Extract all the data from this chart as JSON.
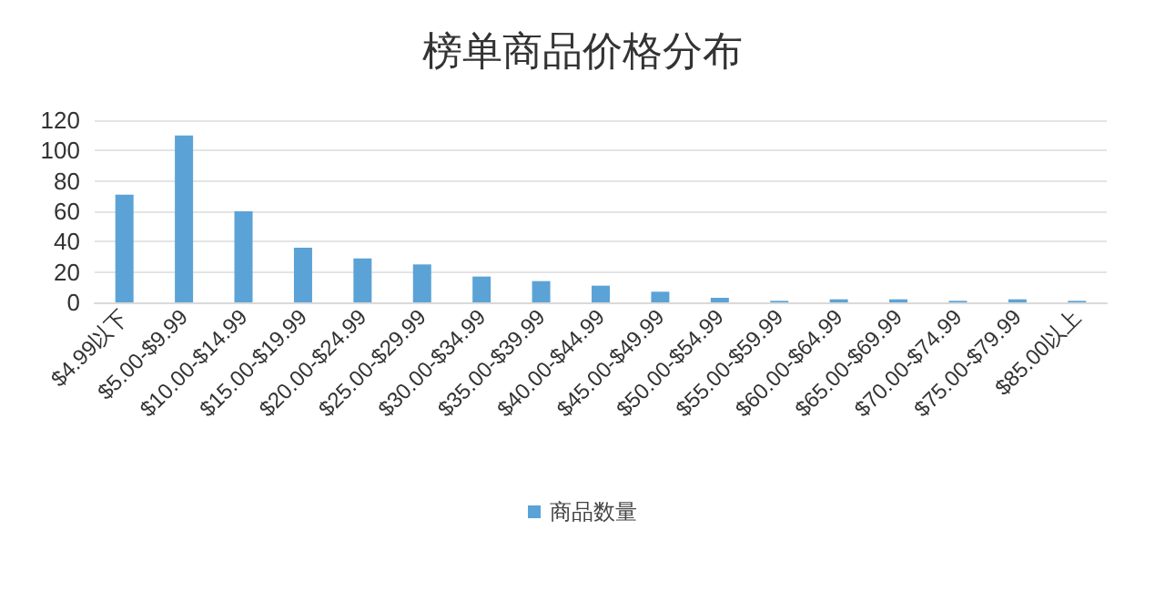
{
  "chart_data": {
    "type": "bar",
    "title": "榜单商品价格分布",
    "categories": [
      "$4.99以下",
      "$5.00-$9.99",
      "$10.00-$14.99",
      "$15.00-$19.99",
      "$20.00-$24.99",
      "$25.00-$29.99",
      "$30.00-$34.99",
      "$35.00-$39.99",
      "$40.00-$44.99",
      "$45.00-$49.99",
      "$50.00-$54.99",
      "$55.00-$59.99",
      "$60.00-$64.99",
      "$65.00-$69.99",
      "$70.00-$74.99",
      "$75.00-$79.99",
      "$85.00以上"
    ],
    "series": [
      {
        "name": "商品数量",
        "color": "#5ba3d6",
        "values": [
          71,
          110,
          60,
          36,
          29,
          25,
          17,
          14,
          11,
          7,
          3,
          1,
          2,
          2,
          1,
          2,
          1
        ]
      }
    ],
    "ylim": [
      0,
      120
    ],
    "yticks": [
      0,
      20,
      40,
      60,
      80,
      100,
      120
    ],
    "grid": "y",
    "legend": "bottom"
  }
}
